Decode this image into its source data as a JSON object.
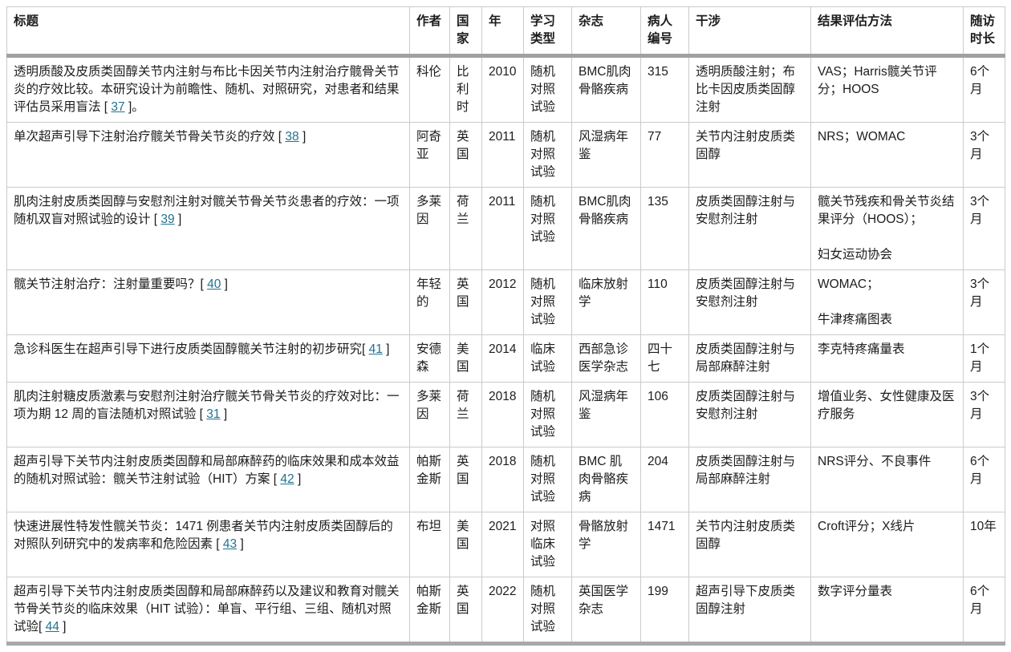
{
  "table": {
    "columns": [
      {
        "label": "标题"
      },
      {
        "label": "作者"
      },
      {
        "label": "国家"
      },
      {
        "label": "年"
      },
      {
        "label": "学习类型"
      },
      {
        "label": "杂志"
      },
      {
        "label": "病人编号"
      },
      {
        "label": "干涉"
      },
      {
        "label": "结果评估方法"
      },
      {
        "label": "随访时长"
      }
    ],
    "rows": [
      {
        "title_pre": "透明质酸及皮质类固醇关节内注射与布比卡因关节内注射治疗髋骨关节炎的疗效比较。本研究设计为前瞻性、随机、对照研究，对患者和结果评估员采用盲法 [ ",
        "ref": "37",
        "title_post": " ]。",
        "author": "科伦",
        "country": "比利时",
        "year": "2010",
        "study_type": "随机对照试验",
        "journal": "BMC肌肉骨骼疾病",
        "patients": "315",
        "intervention": "透明质酸注射；布比卡因皮质类固醇注射",
        "outcome": "VAS；Harris髋关节评分；HOOS",
        "follow_up": "6个月"
      },
      {
        "title_pre": "单次超声引导下注射治疗髋关节骨关节炎的疗效 [ ",
        "ref": "38",
        "title_post": " ]",
        "author": "阿奇亚",
        "country": "英国",
        "year": "2011",
        "study_type": "随机对照试验",
        "journal": "风湿病年鉴",
        "patients": "77",
        "intervention": "关节内注射皮质类固醇",
        "outcome": "NRS；WOMAC",
        "follow_up": "3个月"
      },
      {
        "title_pre": "肌肉注射皮质类固醇与安慰剂注射对髋关节骨关节炎患者的疗效：一项随机双盲对照试验的设计 [ ",
        "ref": "39",
        "title_post": " ]",
        "author": "多莱因",
        "country": "荷兰",
        "year": "2011",
        "study_type": "随机对照试验",
        "journal": "BMC肌肉骨骼疾病",
        "patients": "135",
        "intervention": "皮质类固醇注射与安慰剂注射",
        "outcome": "髋关节残疾和骨关节炎结果评分（HOOS）；",
        "outcome2": "妇女运动协会",
        "follow_up": "3个月"
      },
      {
        "title_pre": "髋关节注射治疗：注射量重要吗？[ ",
        "ref": "40",
        "title_post": " ]",
        "author": "年轻的",
        "country": "英国",
        "year": "2012",
        "study_type": "随机对照试验",
        "journal": "临床放射学",
        "patients": "110",
        "intervention": "皮质类固醇注射与安慰剂注射",
        "outcome": "WOMAC；",
        "outcome2": "牛津疼痛图表",
        "follow_up": "3个月"
      },
      {
        "title_pre": "急诊科医生在超声引导下进行皮质类固醇髋关节注射的初步研究[ ",
        "ref": "41",
        "title_post": " ]",
        "author": "安德森",
        "country": "美国",
        "year": "2014",
        "study_type": "临床试验",
        "journal": "西部急诊医学杂志",
        "patients": "四十七",
        "intervention": "皮质类固醇注射与局部麻醉注射",
        "outcome": "李克特疼痛量表",
        "follow_up": "1个月"
      },
      {
        "title_pre": "肌肉注射糖皮质激素与安慰剂注射治疗髋关节骨关节炎的疗效对比：一项为期 12 周的盲法随机对照试验 [ ",
        "ref": "31",
        "title_post": " ]",
        "author": "多莱因",
        "country": "荷兰",
        "year": "2018",
        "study_type": "随机对照试验",
        "journal": "风湿病年鉴",
        "patients": "106",
        "intervention": "皮质类固醇注射与安慰剂注射",
        "outcome": "增值业务、女性健康及医疗服务",
        "follow_up": "3个月"
      },
      {
        "title_pre": "超声引导下关节内注射皮质类固醇和局部麻醉药的临床效果和成本效益的随机对照试验：髋关节注射试验（HIT）方案 [ ",
        "ref": "42",
        "title_post": " ]",
        "author": "帕斯金斯",
        "country": "英国",
        "year": "2018",
        "study_type": "随机对照试验",
        "journal": "BMC 肌肉骨骼疾病",
        "patients": "204",
        "intervention": "皮质类固醇注射与局部麻醉注射",
        "outcome": "NRS评分、不良事件",
        "follow_up": "6个月"
      },
      {
        "title_pre": "快速进展性特发性髋关节炎：1471 例患者关节内注射皮质类固醇后的对照队列研究中的发病率和危险因素 [ ",
        "ref": "43",
        "title_post": " ]",
        "author": "布坦",
        "country": "美国",
        "year": "2021",
        "study_type": "对照临床试验",
        "journal": "骨骼放射学",
        "patients": "1471",
        "intervention": "关节内注射皮质类固醇",
        "outcome": "Croft评分；X线片",
        "follow_up": "10年"
      },
      {
        "title_pre": "超声引导下关节内注射皮质类固醇和局部麻醉药以及建议和教育对髋关节骨关节炎的临床效果（HIT 试验）：单盲、平行组、三组、随机对照试验[ ",
        "ref": "44",
        "title_post": " ]",
        "author": "帕斯金斯",
        "country": "英国",
        "year": "2022",
        "study_type": "随机对照试验",
        "journal": "英国医学杂志",
        "patients": "199",
        "intervention": "超声引导下皮质类固醇注射",
        "outcome": "数字评分量表",
        "follow_up": "6个月"
      }
    ]
  },
  "colors": {
    "link": "#1f7291",
    "grid_line": "#cbcbcb",
    "heavy_rule": "#a8a8a8",
    "text": "#1c1c1c"
  }
}
